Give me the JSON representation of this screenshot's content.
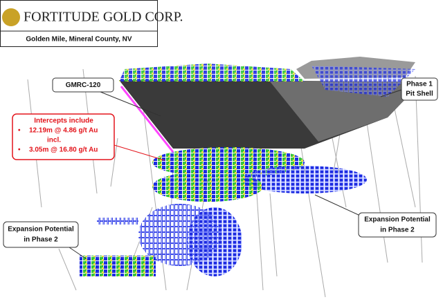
{
  "header": {
    "title": "FORTITUDE GOLD CORP.",
    "subtitle": "Golden Mile, Mineral County, NV"
  },
  "callouts": {
    "hole": "GMRC-120",
    "pit": [
      "Phase 1",
      "Pit Shell"
    ],
    "intercepts": {
      "heading": "Intercepts include",
      "lines": [
        "12.19m @ 4.86 g/t Au",
        "incl.",
        "3.05m @ 16.80 g/t Au"
      ]
    },
    "expansion_left": [
      "Expansion Potential",
      "in Phase 2"
    ],
    "expansion_right": [
      "Expansion Potential",
      "in Phase 2"
    ]
  }
}
